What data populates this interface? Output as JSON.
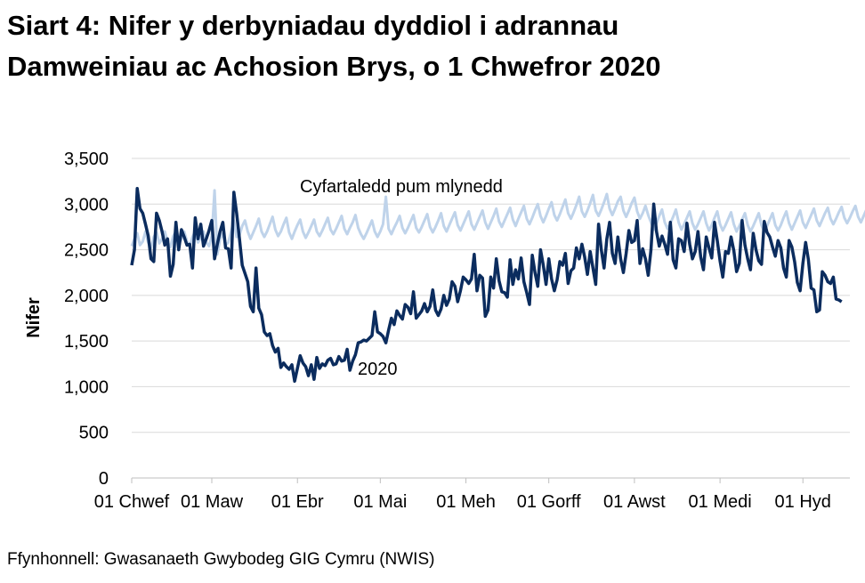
{
  "chart_data": {
    "type": "line",
    "title_line1": "Siart 4: Nifer y derbyniadau dyddiol i adrannau",
    "title_line2": "Damweiniau ac Achosion Brys, o 1 Chwefror 2020",
    "ylabel": "Nifer",
    "xlabel": "",
    "ylim": [
      0,
      3500
    ],
    "y_ticks": [
      "0",
      "500",
      "1,000",
      "1,500",
      "2,000",
      "2,500",
      "3,000",
      "3,500"
    ],
    "y_tick_values": [
      0,
      500,
      1000,
      1500,
      2000,
      2500,
      3000,
      3500
    ],
    "x_range_days": [
      0,
      260
    ],
    "x_ticks": [
      {
        "label": "01 Chwef",
        "day": 0
      },
      {
        "label": "01 Maw",
        "day": 29
      },
      {
        "label": "01 Ebr",
        "day": 60
      },
      {
        "label": "01 Mai",
        "day": 90
      },
      {
        "label": "01 Meh",
        "day": 121
      },
      {
        "label": "01 Gorff",
        "day": 151
      },
      {
        "label": "01 Awst",
        "day": 182
      },
      {
        "label": "01 Medi",
        "day": 213
      },
      {
        "label": "01 Hyd",
        "day": 243
      }
    ],
    "grid": true,
    "series": [
      {
        "name": "Cyfartaledd pum mlynedd",
        "color": "#bfd3ea",
        "values": [
          2540,
          2620,
          2680,
          2550,
          2590,
          2700,
          2580,
          2520,
          2640,
          2690,
          2570,
          2620,
          2700,
          2580,
          2530,
          2650,
          2700,
          2560,
          2620,
          2700,
          2590,
          2540,
          2640,
          2700,
          2580,
          2630,
          2700,
          2580,
          2540,
          2650,
          3150,
          2450,
          2620,
          2680,
          2550,
          2580,
          2700,
          2820,
          2640,
          2660,
          2760,
          2820,
          2700,
          2620,
          2690,
          2760,
          2840,
          2700,
          2640,
          2700,
          2780,
          2860,
          2720,
          2650,
          2700,
          2780,
          2850,
          2690,
          2620,
          2700,
          2770,
          2830,
          2700,
          2630,
          2690,
          2760,
          2830,
          2700,
          2650,
          2710,
          2780,
          2850,
          2720,
          2670,
          2730,
          2800,
          2870,
          2730,
          2670,
          2740,
          2800,
          2880,
          2740,
          2670,
          2620,
          2680,
          2750,
          2820,
          2700,
          2640,
          2700,
          2780,
          3080,
          2730,
          2670,
          2740,
          2800,
          2870,
          2740,
          2680,
          2740,
          2810,
          2880,
          2740,
          2690,
          2750,
          2820,
          2890,
          2750,
          2690,
          2750,
          2820,
          2900,
          2760,
          2700,
          2770,
          2840,
          2910,
          2770,
          2710,
          2780,
          2850,
          2920,
          2780,
          2720,
          2790,
          2860,
          2930,
          2800,
          2730,
          2800,
          2870,
          2950,
          2810,
          2750,
          2820,
          2890,
          2960,
          2830,
          2760,
          2840,
          2910,
          2980,
          2840,
          2780,
          2850,
          2930,
          3000,
          2870,
          2800,
          2870,
          2950,
          3020,
          2880,
          2820,
          2890,
          2970,
          3050,
          2900,
          2840,
          2910,
          2990,
          3080,
          2920,
          2860,
          2930,
          3010,
          3100,
          2930,
          2870,
          2940,
          3020,
          3110,
          2950,
          2880,
          2950,
          3030,
          3080,
          2930,
          2860,
          2930,
          3010,
          3070,
          2920,
          2840,
          2900,
          2980,
          2880,
          2800,
          2720,
          2790,
          2870,
          2940,
          2800,
          2730,
          2790,
          2860,
          2940,
          2800,
          2720,
          2780,
          2850,
          2920,
          2790,
          2720,
          2780,
          2850,
          2920,
          2790,
          2710,
          2770,
          2850,
          2920,
          2780,
          2710,
          2770,
          2840,
          2910,
          2780,
          2700,
          2760,
          2830,
          2900,
          2770,
          2700,
          2760,
          2830,
          2900,
          2770,
          2700,
          2760,
          2830,
          2900,
          2770,
          2710,
          2770,
          2850,
          2920,
          2790,
          2720,
          2790,
          2860,
          2930,
          2800,
          2740,
          2810,
          2880,
          2950,
          2820,
          2760,
          2830,
          2900,
          2960,
          2840,
          2780,
          2840,
          2910,
          2970,
          2850,
          2790,
          2850,
          2920,
          2980,
          2860,
          2800,
          2870,
          2940
        ]
      },
      {
        "name": "2020",
        "color": "#0b2c5e",
        "values": [
          2330,
          2500,
          3170,
          2950,
          2900,
          2780,
          2650,
          2400,
          2370,
          2900,
          2820,
          2700,
          2550,
          2620,
          2210,
          2340,
          2800,
          2500,
          2720,
          2640,
          2550,
          2560,
          2300,
          2850,
          2620,
          2780,
          2540,
          2620,
          2710,
          2820,
          2400,
          2560,
          2700,
          2800,
          2520,
          2510,
          2300,
          3130,
          2900,
          2620,
          2330,
          2240,
          2150,
          1880,
          1820,
          2300,
          1860,
          1790,
          1600,
          1560,
          1580,
          1450,
          1380,
          1420,
          1210,
          1260,
          1220,
          1190,
          1240,
          1060,
          1200,
          1340,
          1260,
          1220,
          1120,
          1240,
          1080,
          1320,
          1200,
          1250,
          1230,
          1290,
          1310,
          1240,
          1250,
          1330,
          1280,
          1290,
          1410,
          1180,
          1280,
          1350,
          1480,
          1490,
          1510,
          1500,
          1530,
          1560,
          1820,
          1600,
          1580,
          1550,
          1480,
          1620,
          1750,
          1680,
          1830,
          1780,
          1740,
          1900,
          1870,
          1800,
          2040,
          1750,
          1790,
          1830,
          1910,
          1820,
          1880,
          2060,
          1840,
          1780,
          1850,
          2000,
          1890,
          1960,
          2150,
          2100,
          1930,
          2050,
          2200,
          2170,
          2130,
          2180,
          2450,
          2050,
          2220,
          2190,
          1770,
          1840,
          2200,
          2080,
          2400,
          2160,
          2040,
          2030,
          1980,
          2390,
          2120,
          2280,
          2180,
          2410,
          2150,
          2030,
          1900,
          2440,
          2250,
          2100,
          2500,
          2330,
          2120,
          2400,
          2180,
          2050,
          2170,
          2370,
          2330,
          2460,
          2130,
          2270,
          2300,
          2520,
          2400,
          2560,
          2420,
          2230,
          2480,
          2300,
          2120,
          2780,
          2500,
          2300,
          2620,
          2800,
          2460,
          2350,
          2640,
          2400,
          2250,
          2460,
          2710,
          2580,
          2600,
          2820,
          2350,
          2510,
          2400,
          2220,
          2500,
          3000,
          2700,
          2540,
          2650,
          2560,
          2450,
          2800,
          2390,
          2300,
          2620,
          2600,
          2480,
          2790,
          2560,
          2400,
          2480,
          2700,
          2420,
          2280,
          2640,
          2520,
          2410,
          2800,
          2600,
          2380,
          2200,
          2480,
          2460,
          2640,
          2490,
          2260,
          2350,
          2820,
          2550,
          2400,
          2280,
          2680,
          2500,
          2380,
          2340,
          2810,
          2690,
          2640,
          2530,
          2430,
          2600,
          2520,
          2300,
          2200,
          2600,
          2530,
          2370,
          2140,
          2050,
          2350,
          2580,
          2390,
          2080,
          2060,
          1820,
          1840,
          2260,
          2220,
          2150,
          2130,
          2200,
          1960,
          1950,
          1930
        ]
      }
    ],
    "annotations": [
      {
        "text": "Cyfartaledd pum mlynedd",
        "series": "Cyfartaledd pum mlynedd"
      },
      {
        "text": "2020",
        "series": "2020"
      }
    ]
  },
  "source": "Ffynhonnell: Gwasanaeth Gwybodeg GIG Cymru (NWIS)"
}
